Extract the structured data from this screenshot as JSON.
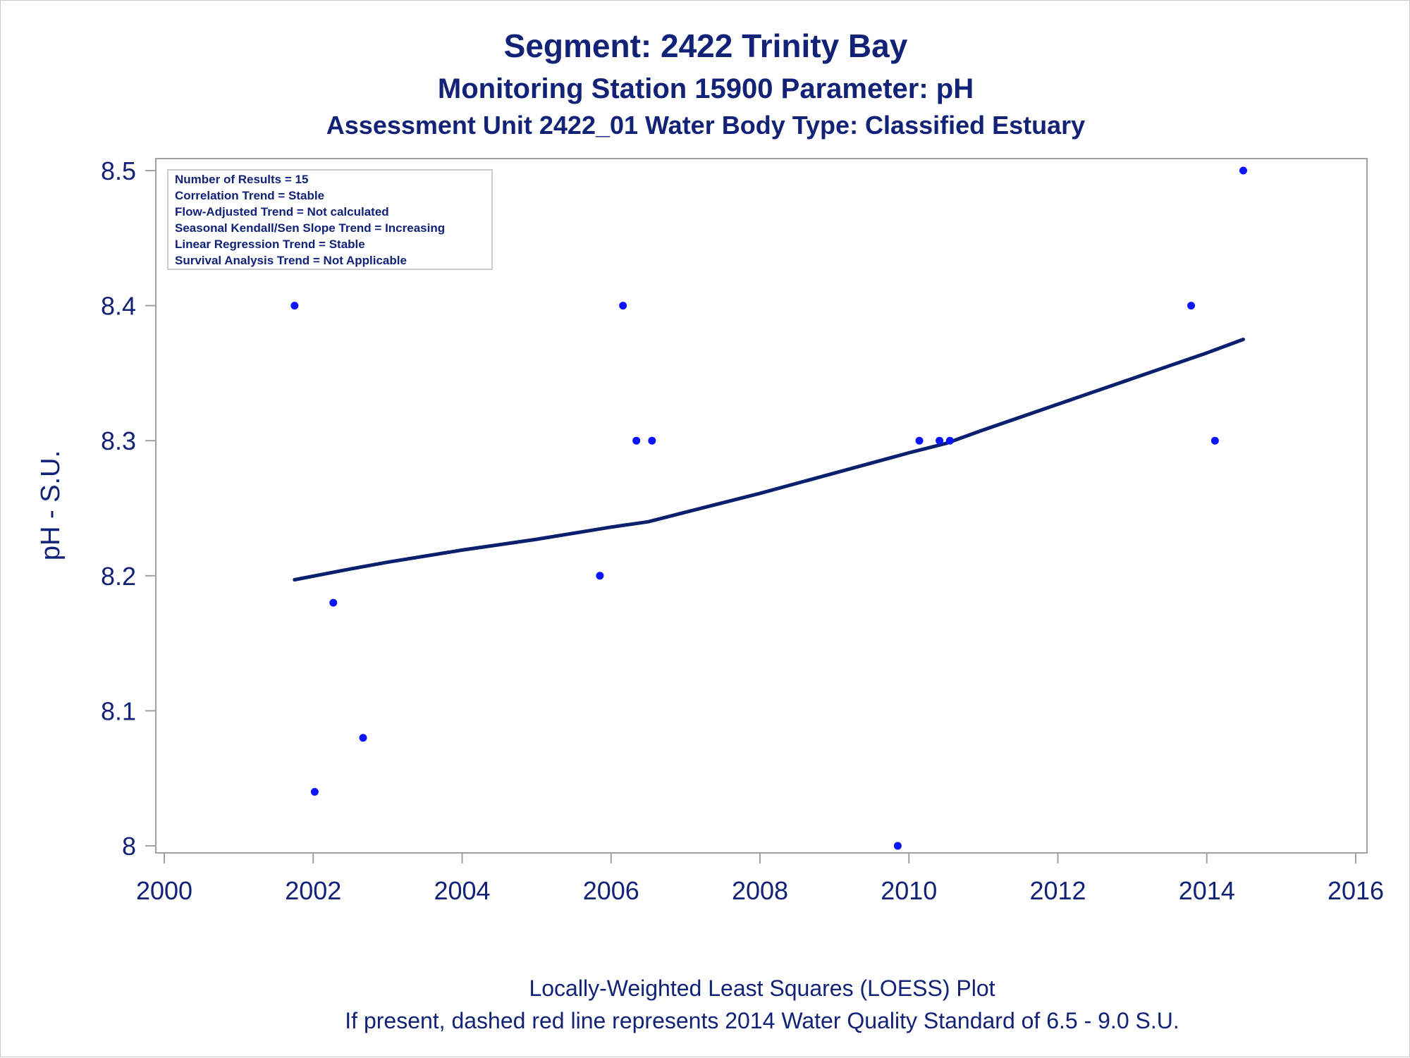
{
  "chart_data": {
    "type": "scatter",
    "title": "Segment: 2422  Trinity Bay",
    "subtitle": "Monitoring Station 15900 Parameter: pH",
    "subtitle2": "Assessment Unit 2422_01   Water Body Type: Classified Estuary",
    "xlabel": "",
    "ylabel": "pH - S.U.",
    "xlim": [
      2000,
      2016
    ],
    "ylim": [
      8.0,
      8.5
    ],
    "x_ticks": [
      2000,
      2002,
      2004,
      2006,
      2008,
      2010,
      2012,
      2014,
      2016
    ],
    "y_ticks": [
      8,
      8.1,
      8.2,
      8.3,
      8.4,
      8.5
    ],
    "x_tick_labels": [
      "2000",
      "2002",
      "2004",
      "2006",
      "2008",
      "2010",
      "2012",
      "2014",
      "2016"
    ],
    "y_tick_labels": [
      "8",
      "8.1",
      "8.2",
      "8.3",
      "8.4",
      "8.5"
    ],
    "grid": false,
    "legend_position": "top-left",
    "points": [
      {
        "x": 2001.75,
        "y": 8.4
      },
      {
        "x": 2002.02,
        "y": 8.04
      },
      {
        "x": 2002.27,
        "y": 8.18
      },
      {
        "x": 2002.67,
        "y": 8.08
      },
      {
        "x": 2005.85,
        "y": 8.2
      },
      {
        "x": 2006.16,
        "y": 8.4
      },
      {
        "x": 2006.34,
        "y": 8.3
      },
      {
        "x": 2006.55,
        "y": 8.3
      },
      {
        "x": 2009.85,
        "y": 8.0
      },
      {
        "x": 2010.14,
        "y": 8.3
      },
      {
        "x": 2010.41,
        "y": 8.3
      },
      {
        "x": 2010.55,
        "y": 8.3
      },
      {
        "x": 2013.79,
        "y": 8.4
      },
      {
        "x": 2014.11,
        "y": 8.3
      },
      {
        "x": 2014.49,
        "y": 8.5
      }
    ],
    "loess_line": [
      {
        "x": 2001.75,
        "y": 8.197
      },
      {
        "x": 2002.5,
        "y": 8.205
      },
      {
        "x": 2003.0,
        "y": 8.21
      },
      {
        "x": 2004.0,
        "y": 8.219
      },
      {
        "x": 2005.0,
        "y": 8.227
      },
      {
        "x": 2006.0,
        "y": 8.236
      },
      {
        "x": 2006.5,
        "y": 8.24
      },
      {
        "x": 2007.0,
        "y": 8.247
      },
      {
        "x": 2008.0,
        "y": 8.261
      },
      {
        "x": 2009.0,
        "y": 8.276
      },
      {
        "x": 2010.0,
        "y": 8.291
      },
      {
        "x": 2010.5,
        "y": 8.298
      },
      {
        "x": 2011.0,
        "y": 8.308
      },
      {
        "x": 2012.0,
        "y": 8.327
      },
      {
        "x": 2013.0,
        "y": 8.346
      },
      {
        "x": 2014.0,
        "y": 8.365
      },
      {
        "x": 2014.49,
        "y": 8.375
      }
    ],
    "legend_box": [
      "Number of Results = 15",
      "Correlation Trend = Stable",
      "Flow-Adjusted Trend = Not calculated",
      "Seasonal Kendall/Sen Slope Trend = Increasing",
      "Linear Regression Trend = Stable",
      "Survival Analysis Trend = Not Applicable"
    ],
    "footnote1": "Locally-Weighted Least Squares (LOESS) Plot",
    "footnote2": "If present, dashed red line represents 2014 Water Quality Standard of 6.5 - 9.0 S.U.",
    "colors": {
      "points": "#0a14ff",
      "line": "#0a1f6e",
      "text": "#112277",
      "axis": "#a0a0a0"
    }
  }
}
